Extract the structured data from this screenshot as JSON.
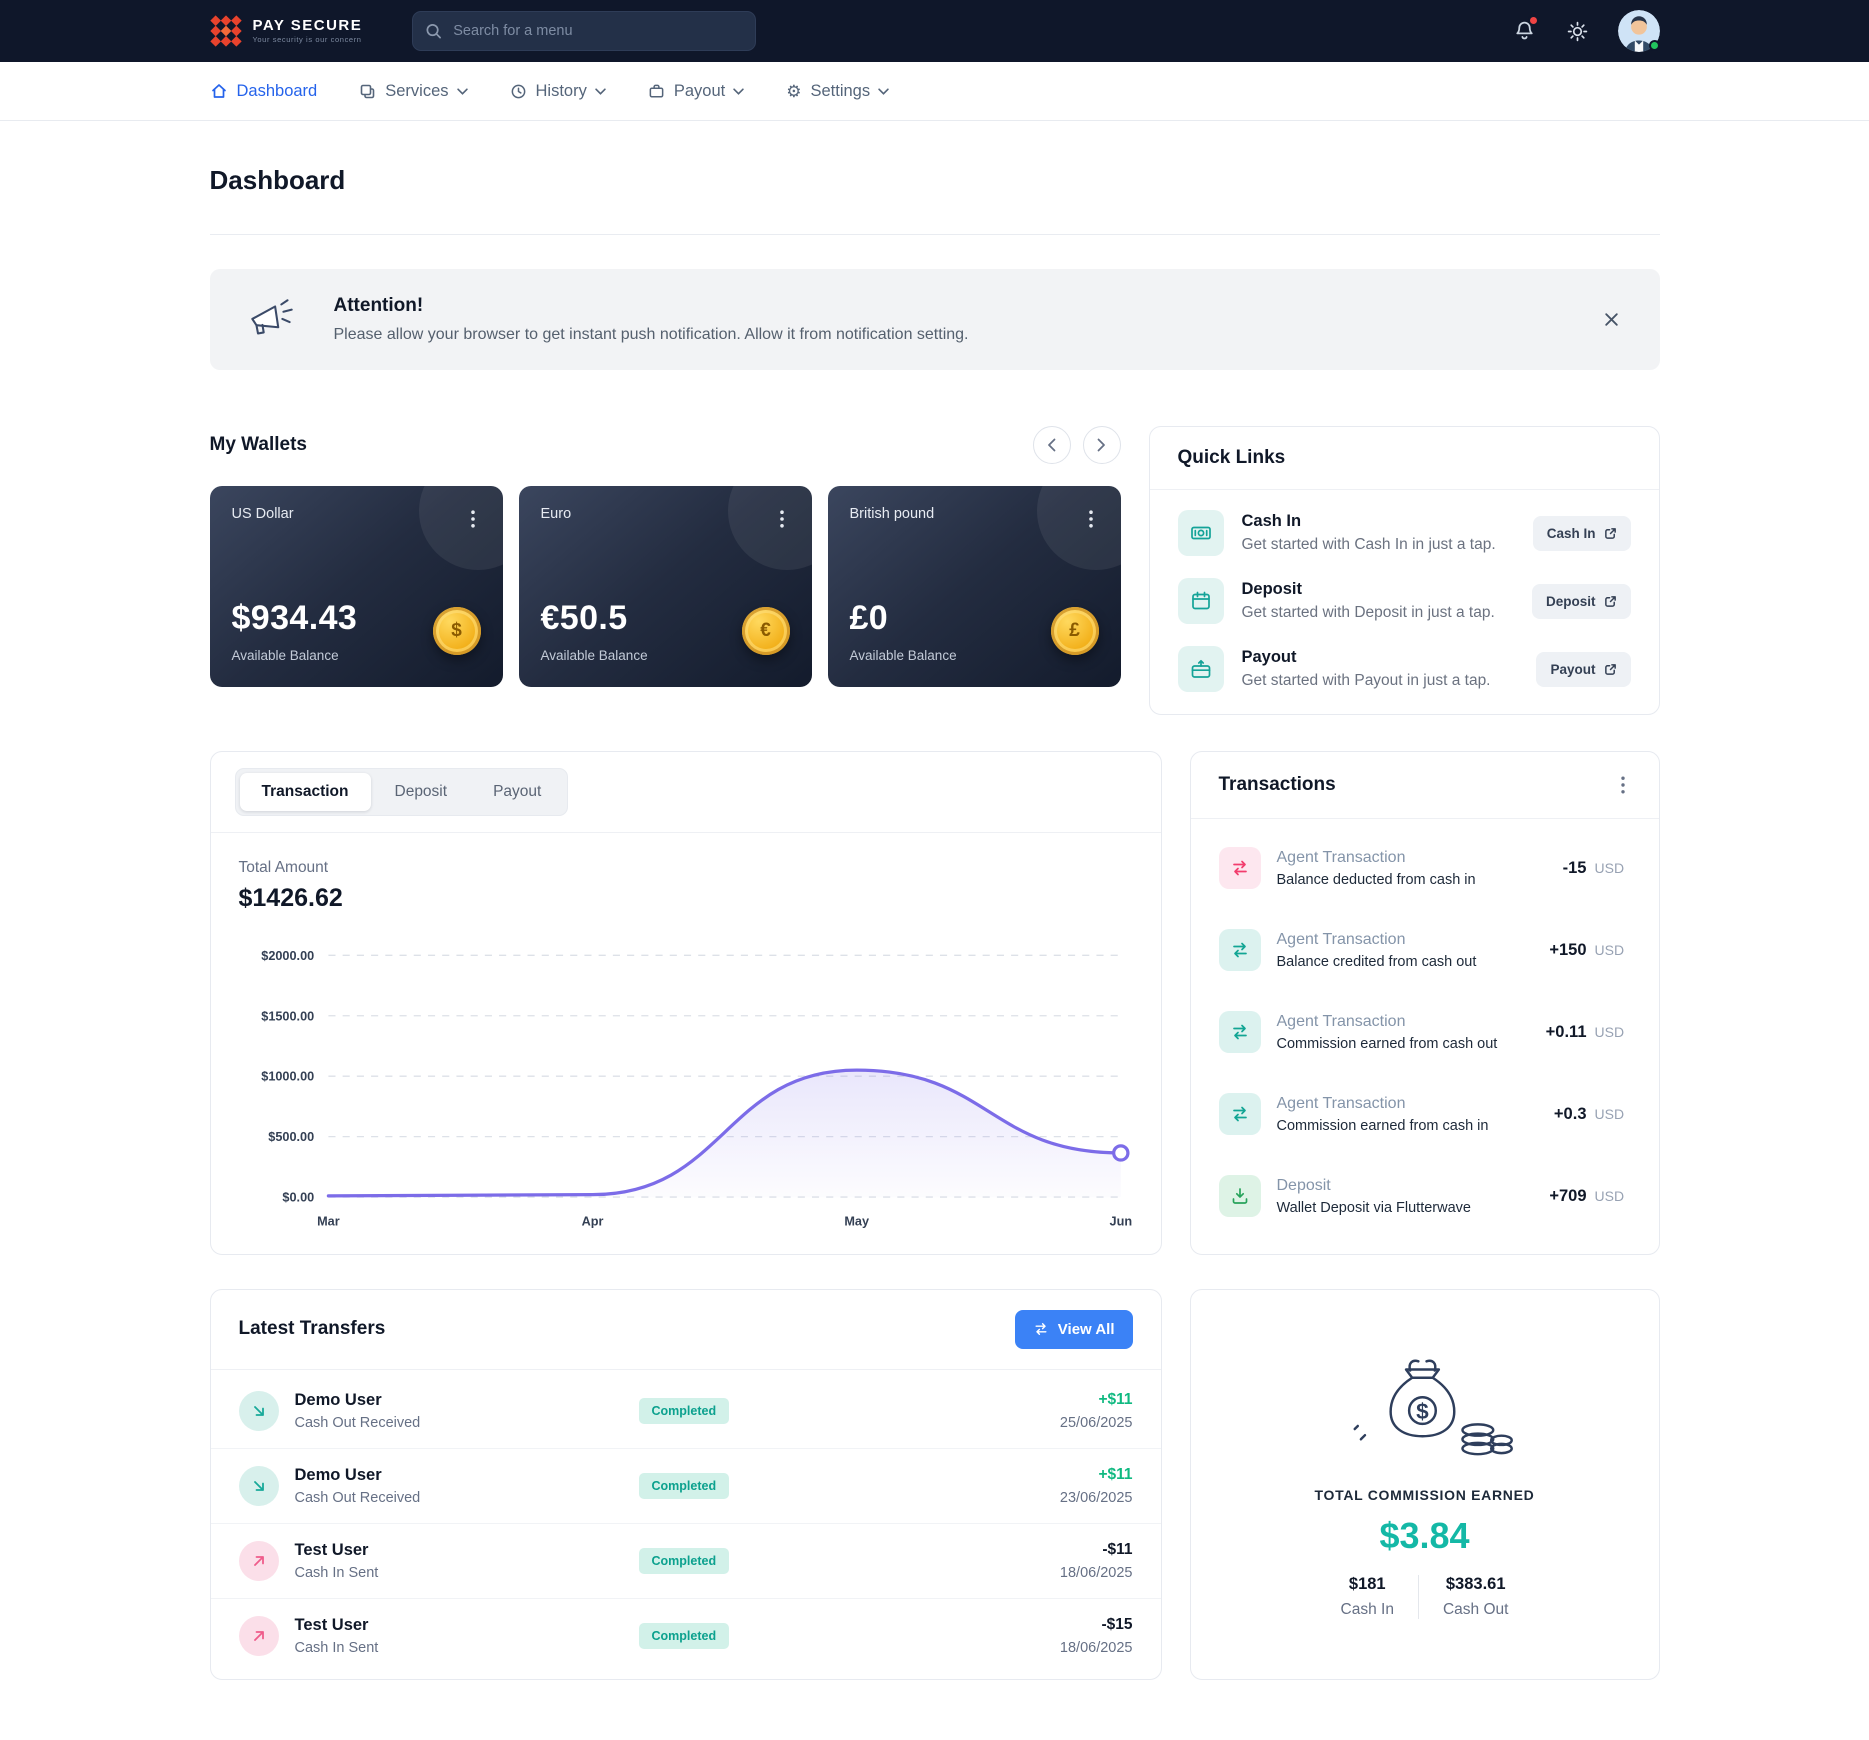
{
  "colors": {
    "navbar_bg": "#0f172a",
    "accent_blue": "#2563eb",
    "button_blue": "#3b82f6",
    "teal": "#14a398",
    "green": "#27a35b",
    "pink": "#f23d6d",
    "positive_amount": "#10b981",
    "chart_line": "#7c6ce8",
    "completed_badge_bg": "#d2f1e9",
    "completed_badge_text": "#0ca18e",
    "commission_total": "#14b8a6",
    "coin_gold": "#f0a90f"
  },
  "navbar": {
    "brand_name": "PAY SECURE",
    "brand_tagline": "Your security is our concern",
    "search_placeholder": "Search for a menu"
  },
  "nav": {
    "items": [
      {
        "label": "Dashboard",
        "active": true
      },
      {
        "label": "Services",
        "dropdown": true
      },
      {
        "label": "History",
        "dropdown": true
      },
      {
        "label": "Payout",
        "dropdown": true
      },
      {
        "label": "Settings",
        "dropdown": true
      }
    ]
  },
  "page_title": "Dashboard",
  "banner": {
    "title": "Attention!",
    "message": "Please allow your browser to get instant push notification. Allow it from notification setting."
  },
  "wallets": {
    "heading": "My Wallets",
    "cards": [
      {
        "name": "US Dollar",
        "balance": "$934.43",
        "label": "Available Balance",
        "symbol": "$"
      },
      {
        "name": "Euro",
        "balance": "€50.5",
        "label": "Available Balance",
        "symbol": "€"
      },
      {
        "name": "British pound",
        "balance": "£0",
        "label": "Available Balance",
        "symbol": "£"
      }
    ]
  },
  "quick_links": {
    "heading": "Quick Links",
    "items": [
      {
        "title": "Cash In",
        "description": "Get started with Cash In in just a tap.",
        "button_label": "Cash In"
      },
      {
        "title": "Deposit",
        "description": "Get started with Deposit in just a tap.",
        "button_label": "Deposit"
      },
      {
        "title": "Payout",
        "description": "Get started with Payout in just a tap.",
        "button_label": "Payout"
      }
    ]
  },
  "chart_card": {
    "tabs": [
      {
        "label": "Transaction",
        "active": true
      },
      {
        "label": "Deposit",
        "active": false
      },
      {
        "label": "Payout",
        "active": false
      }
    ],
    "total_label": "Total Amount",
    "total_value": "$1426.62"
  },
  "chart_data": {
    "type": "area",
    "title": "",
    "xlabel": "",
    "ylabel": "",
    "x": [
      "Mar",
      "Apr",
      "May",
      "Jun"
    ],
    "values": [
      10,
      20,
      1050,
      365
    ],
    "ylim": [
      0,
      2000
    ],
    "ytick_labels": [
      "$0.00",
      "$500.00",
      "$1000.00",
      "$1500.00",
      "$2000.00"
    ],
    "grid": true,
    "line_color": "#7c6ce8"
  },
  "transactions": {
    "heading": "Transactions",
    "items": [
      {
        "title": "Agent Transaction",
        "subtitle": "Balance deducted from cash in",
        "amount": "-15",
        "currency": "USD",
        "type": "debit"
      },
      {
        "title": "Agent Transaction",
        "subtitle": "Balance credited from cash out",
        "amount": "+150",
        "currency": "USD",
        "type": "credit"
      },
      {
        "title": "Agent Transaction",
        "subtitle": "Commission earned from cash out",
        "amount": "+0.11",
        "currency": "USD",
        "type": "credit"
      },
      {
        "title": "Agent Transaction",
        "subtitle": "Commission earned from cash in",
        "amount": "+0.3",
        "currency": "USD",
        "type": "credit"
      },
      {
        "title": "Deposit",
        "subtitle": "Wallet Deposit via Flutterwave",
        "amount": "+709",
        "currency": "USD",
        "type": "deposit"
      }
    ]
  },
  "transfers": {
    "heading": "Latest Transfers",
    "view_all_label": "View All",
    "rows": [
      {
        "name": "Demo User",
        "type": "Cash Out Received",
        "status": "Completed",
        "amount": "+$11",
        "date": "25/06/2025",
        "direction": "in"
      },
      {
        "name": "Demo User",
        "type": "Cash Out Received",
        "status": "Completed",
        "amount": "+$11",
        "date": "23/06/2025",
        "direction": "in"
      },
      {
        "name": "Test User",
        "type": "Cash In Sent",
        "status": "Completed",
        "amount": "-$11",
        "date": "18/06/2025",
        "direction": "out"
      },
      {
        "name": "Test User",
        "type": "Cash In Sent",
        "status": "Completed",
        "amount": "-$15",
        "date": "18/06/2025",
        "direction": "out"
      }
    ]
  },
  "commission": {
    "label": "TOTAL COMMISSION EARNED",
    "total": "$3.84",
    "cash_in_value": "$181",
    "cash_in_label": "Cash In",
    "cash_out_value": "$383.61",
    "cash_out_label": "Cash Out"
  }
}
